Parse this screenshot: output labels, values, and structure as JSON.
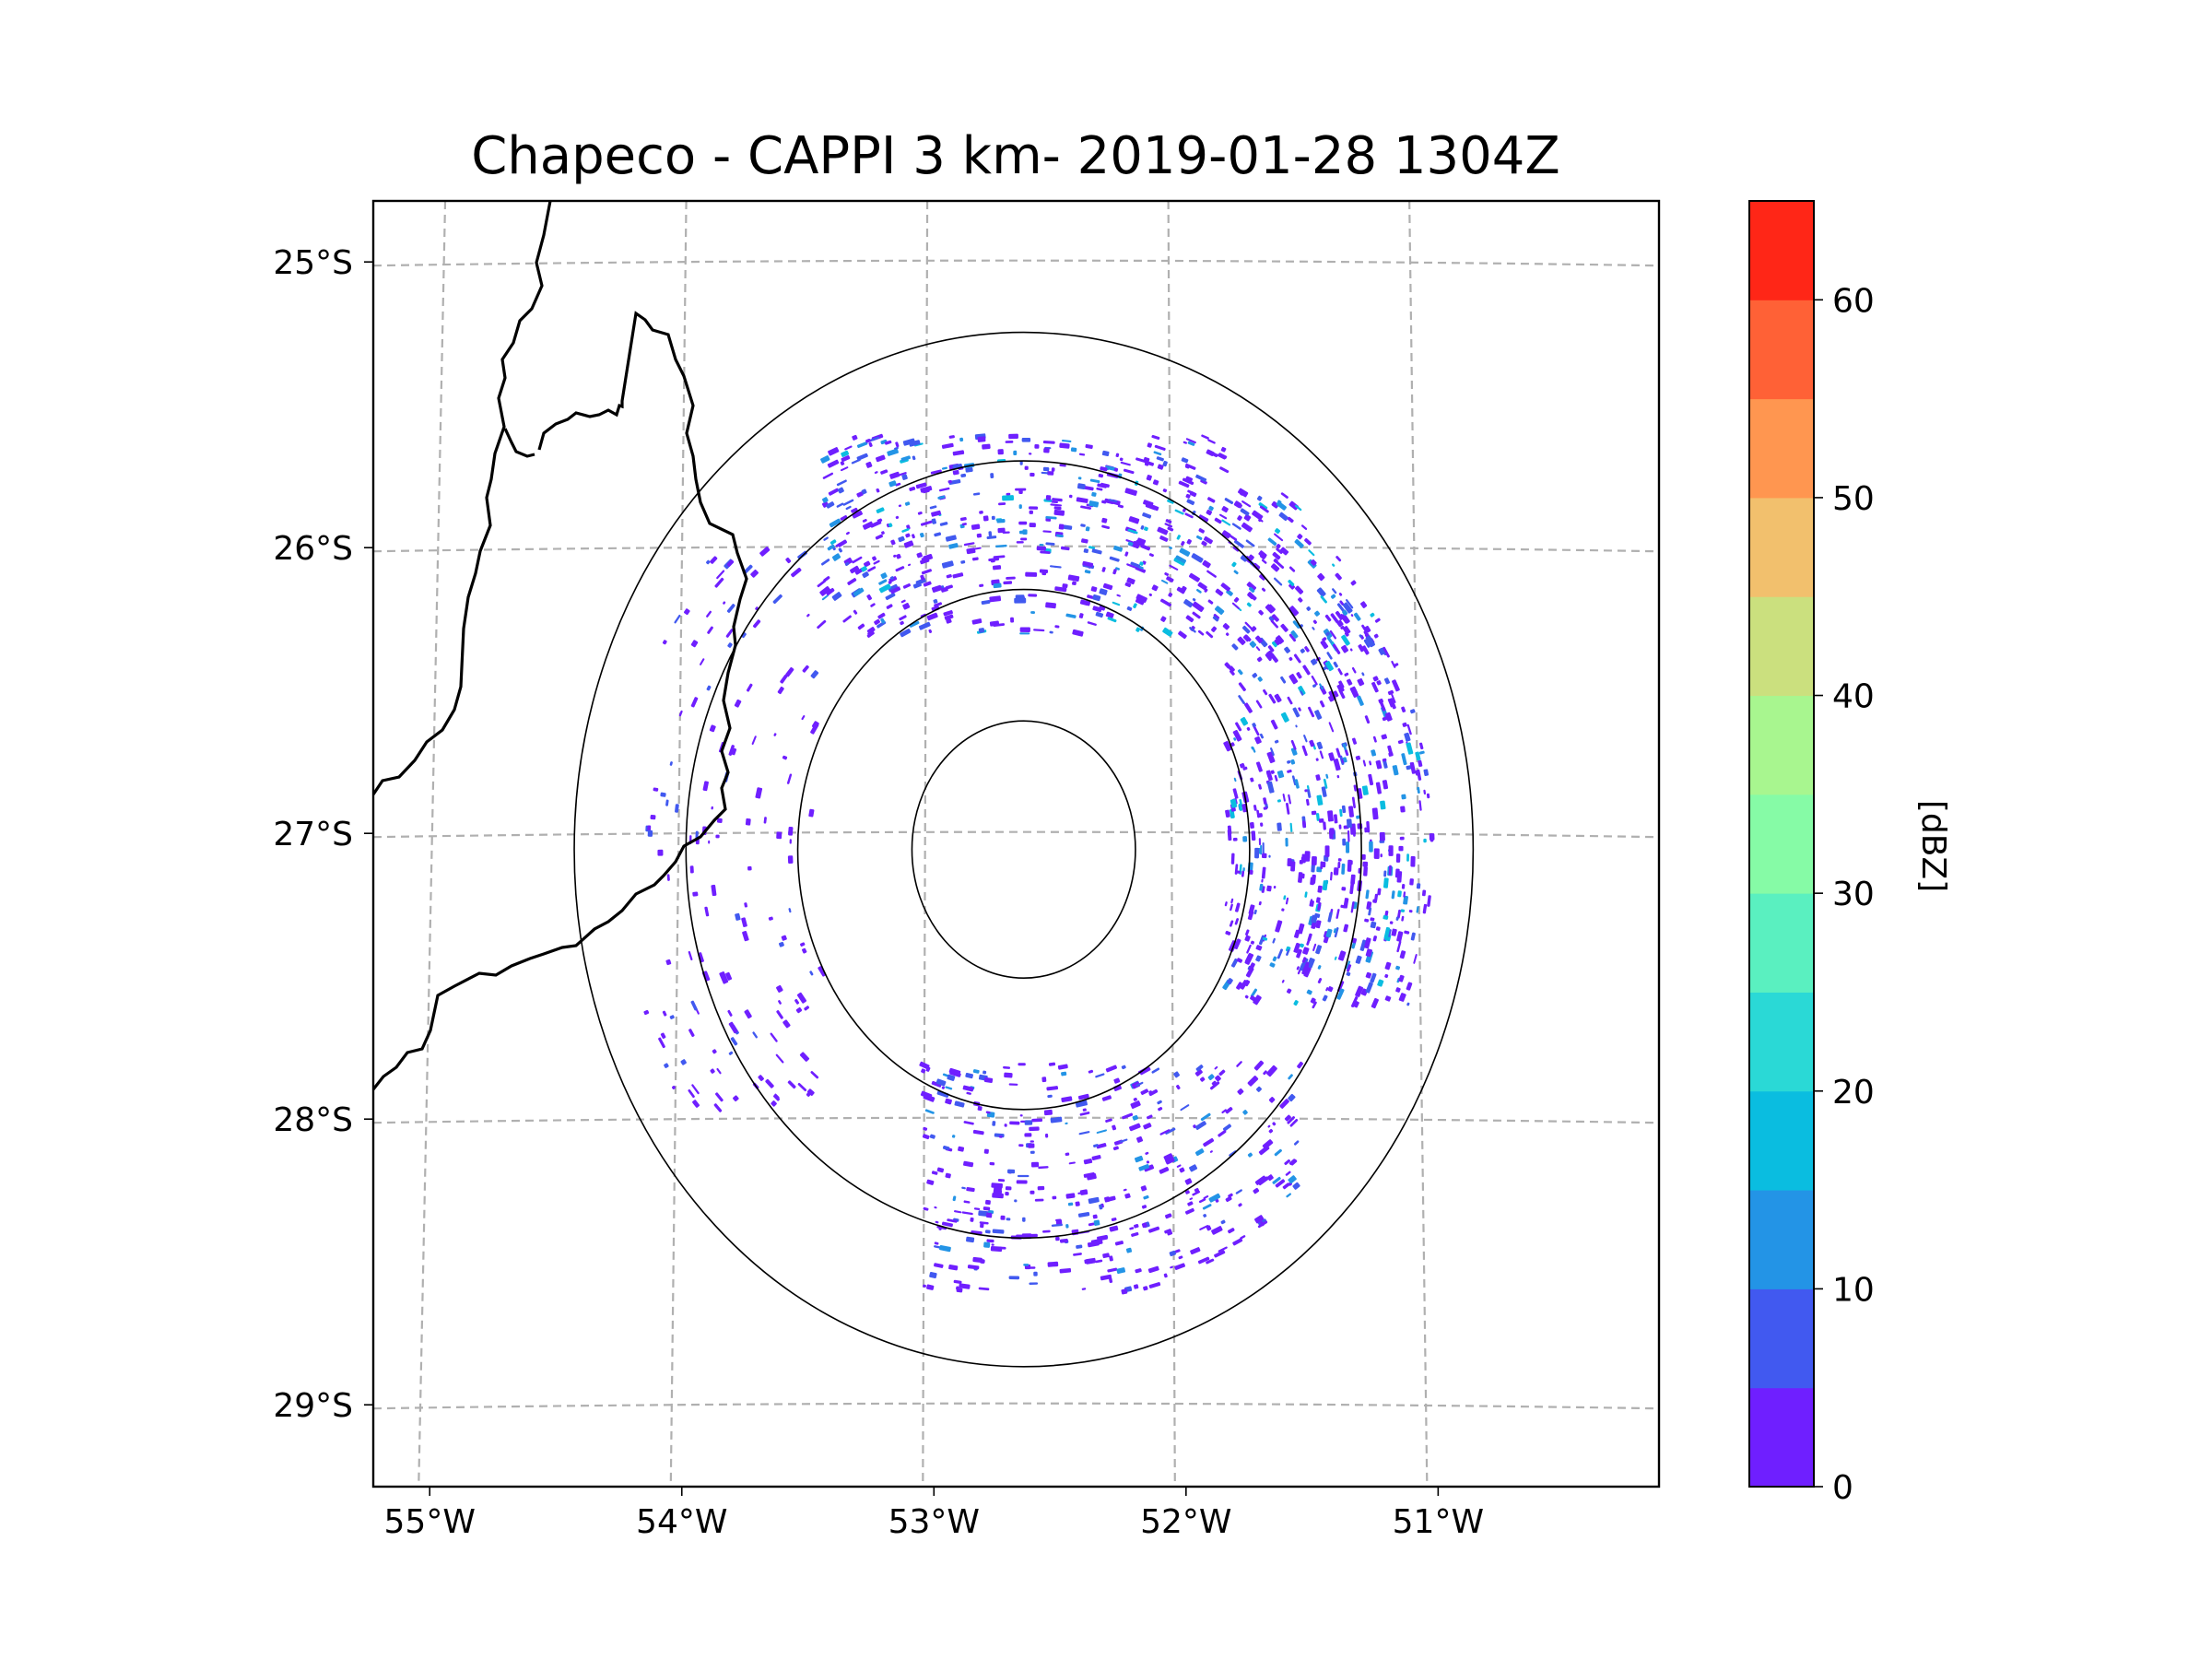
{
  "chart_data": {
    "type": "heatmap",
    "title": "Chapeco - CAPPI 3 km- 2019-01-28 1304Z",
    "subtype": "radar CAPPI reflectivity map",
    "radar_site": "Chapeco",
    "radar_center": {
      "lon": -52.6,
      "lat": -27.05
    },
    "lon_range": [
      -55.18,
      -50.08
    ],
    "lat_range": [
      -29.28,
      -24.78
    ],
    "x_ticks": [
      {
        "value": -55,
        "label": "55°W"
      },
      {
        "value": -54,
        "label": "54°W"
      },
      {
        "value": -53,
        "label": "53°W"
      },
      {
        "value": -52,
        "label": "52°W"
      },
      {
        "value": -51,
        "label": "51°W"
      }
    ],
    "y_ticks": [
      {
        "value": -25,
        "label": "25°S"
      },
      {
        "value": -26,
        "label": "26°S"
      },
      {
        "value": -27,
        "label": "27°S"
      },
      {
        "value": -28,
        "label": "28°S"
      },
      {
        "value": -29,
        "label": "29°S"
      }
    ],
    "grid": true,
    "range_rings_deg": [
      0.45,
      0.91,
      1.36,
      1.81
    ],
    "colorbar": {
      "label": "[dBZ]",
      "levels": [
        0,
        5,
        10,
        15,
        20,
        25,
        30,
        35,
        40,
        45,
        50,
        55,
        60,
        65
      ],
      "colors": [
        "#6f1fff",
        "#4159f0",
        "#2394e6",
        "#0abde0",
        "#2ad9d6",
        "#5af0c0",
        "#86fba6",
        "#a8f68f",
        "#cbe07e",
        "#f2c06d",
        "#ff9650",
        "#ff6136",
        "#ff2617"
      ],
      "ticks": [
        0,
        10,
        20,
        30,
        40,
        50,
        60
      ]
    },
    "echo_clusters": [
      {
        "region": "north",
        "lon_range": [
          -53.4,
          -51.8
        ],
        "lat_range": [
          -26.3,
          -25.6
        ],
        "dbz_range": [
          0,
          20
        ]
      },
      {
        "region": "east",
        "lon_range": [
          -51.8,
          -50.9
        ],
        "lat_range": [
          -27.6,
          -25.8
        ],
        "dbz_range": [
          0,
          20
        ]
      },
      {
        "region": "south",
        "lon_range": [
          -53.0,
          -51.5
        ],
        "lat_range": [
          -28.6,
          -27.8
        ],
        "dbz_range": [
          0,
          15
        ]
      },
      {
        "region": "west",
        "lon_range": [
          -54.1,
          -53.4
        ],
        "lat_range": [
          -28.0,
          -26.0
        ],
        "dbz_range": [
          0,
          10
        ]
      }
    ]
  }
}
